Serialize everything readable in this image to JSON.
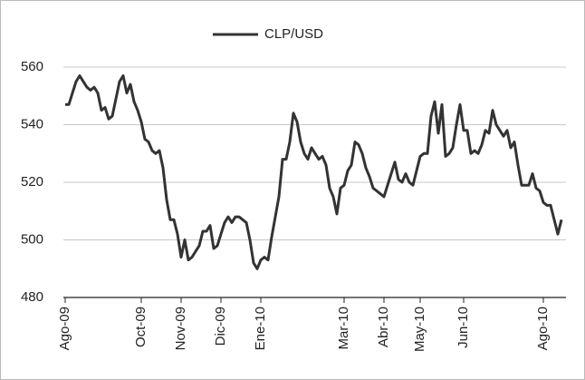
{
  "chart_data": {
    "type": "line",
    "x": [
      0,
      1,
      2,
      3,
      4,
      5,
      6,
      7,
      8,
      9,
      10,
      11,
      12,
      13,
      14,
      15,
      16,
      17,
      18,
      19,
      20,
      21,
      22,
      23,
      24,
      25,
      26,
      27,
      28,
      29,
      30,
      31,
      32,
      33,
      34,
      35,
      36,
      37,
      38,
      39,
      40,
      41,
      42,
      43,
      44,
      45,
      46,
      47,
      48,
      49,
      50,
      51,
      52,
      53,
      54,
      55,
      56,
      57,
      58,
      59,
      60,
      61,
      62,
      63,
      64,
      65,
      66,
      67,
      68,
      69,
      70,
      71,
      72,
      73,
      74,
      75,
      76,
      77,
      78,
      79,
      80,
      81,
      82,
      83,
      84,
      85,
      86,
      87,
      88,
      89,
      90,
      91,
      92,
      93,
      94,
      95,
      96,
      97,
      98,
      99,
      100,
      101,
      102,
      103,
      104,
      105,
      106,
      107,
      108,
      109,
      110,
      111,
      112,
      113,
      114,
      115,
      116,
      117,
      118,
      119,
      120,
      121,
      122,
      123,
      124,
      125,
      126,
      127,
      128,
      129,
      130,
      131,
      132,
      133,
      134,
      135,
      136,
      137
    ],
    "series": [
      {
        "name": "CLP/USD",
        "color": "#333333",
        "values": [
          547,
          547,
          551,
          555,
          557,
          555,
          553,
          552,
          553,
          551,
          545,
          546,
          542,
          543,
          549,
          555,
          557,
          551,
          554,
          548,
          545,
          541,
          535,
          534,
          531,
          530,
          531,
          525,
          514,
          507,
          507,
          502,
          494,
          500,
          493,
          494,
          496,
          498,
          503,
          503,
          505,
          497,
          498,
          502,
          506,
          508,
          506,
          508,
          508,
          507,
          506,
          500,
          492,
          490,
          493,
          494,
          493,
          501,
          508,
          515,
          528,
          528,
          534,
          544,
          541,
          534,
          530,
          528,
          532,
          530,
          528,
          529,
          526,
          518,
          515,
          509,
          518,
          519,
          524,
          526,
          534,
          533,
          530,
          525,
          522,
          518,
          517,
          516,
          515,
          519,
          523,
          527,
          521,
          520,
          523,
          520,
          519,
          524,
          529,
          530,
          530,
          543,
          548,
          537,
          547,
          529,
          530,
          532,
          540,
          547,
          538,
          538,
          530,
          531,
          530,
          533,
          538,
          537,
          545,
          540,
          538,
          536,
          538,
          532,
          534,
          526,
          519,
          519,
          519,
          523,
          518,
          517,
          513,
          512,
          512,
          507,
          502,
          507
        ]
      }
    ],
    "xlim": [
      -0.5,
      138.25
    ],
    "xticks": [
      {
        "value": 0,
        "label": "Ago-09"
      },
      {
        "value": 21,
        "label": "Oct-09"
      },
      {
        "value": 32,
        "label": "Nov-09"
      },
      {
        "value": 43,
        "label": "Dic-09"
      },
      {
        "value": 54,
        "label": "Ene-10"
      },
      {
        "value": 77,
        "label": "Mar-10"
      },
      {
        "value": 88,
        "label": "Abr-10"
      },
      {
        "value": 98,
        "label": "May-10"
      },
      {
        "value": 110,
        "label": "Jun-10"
      },
      {
        "value": 132,
        "label": "Ago-10"
      }
    ],
    "ylim": [
      480,
      560
    ],
    "yticks": [
      480,
      500,
      520,
      540,
      560
    ],
    "grid": true,
    "legend": "top"
  }
}
